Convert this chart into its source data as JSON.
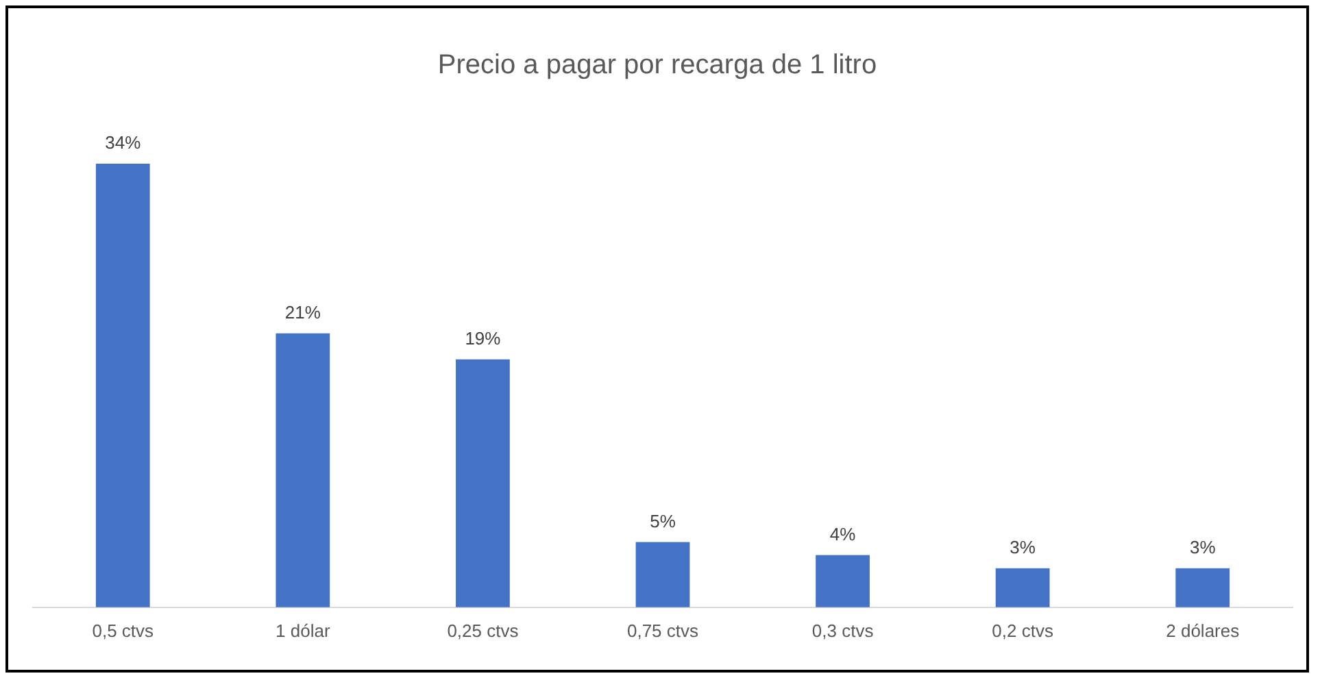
{
  "chart_data": {
    "type": "bar",
    "title": "Precio a pagar por recarga de 1 litro",
    "categories": [
      "0,5 ctvs",
      "1 dólar",
      "0,25 ctvs",
      "0,75 ctvs",
      "0,3 ctvs",
      "0,2 ctvs",
      "2 dólares"
    ],
    "values": [
      34,
      21,
      19,
      5,
      4,
      3,
      3
    ],
    "value_labels": [
      "34%",
      "21%",
      "19%",
      "5%",
      "4%",
      "3%",
      "3%"
    ],
    "color": "#4472c4",
    "grid": false,
    "legend": false
  }
}
